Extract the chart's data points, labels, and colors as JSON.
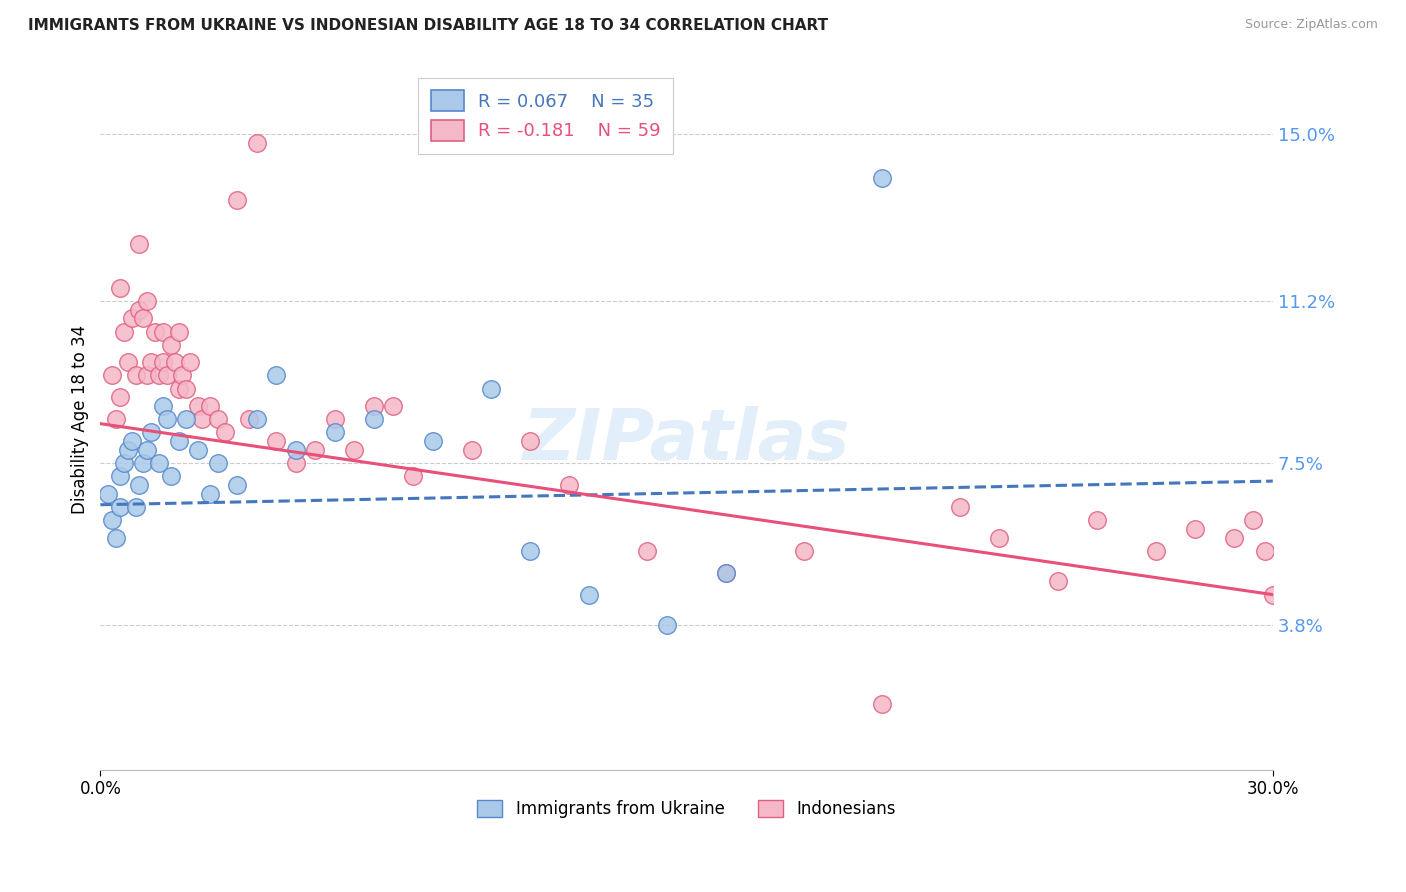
{
  "title": "IMMIGRANTS FROM UKRAINE VS INDONESIAN DISABILITY AGE 18 TO 34 CORRELATION CHART",
  "source": "Source: ZipAtlas.com",
  "ylabel": "Disability Age 18 to 34",
  "ytick_values": [
    3.8,
    7.5,
    11.2,
    15.0
  ],
  "xlim": [
    0.0,
    30.0
  ],
  "ylim": [
    0.5,
    16.5
  ],
  "ukraine_color": "#aac9e8",
  "ukraine_edge": "#5588cc",
  "indonesian_color": "#f5b8c8",
  "indonesian_edge": "#e06080",
  "trendline_ukraine_color": "#4477bb",
  "trendline_indonesian_color": "#e8507a",
  "ukraine_slope": 0.018,
  "ukraine_intercept": 6.55,
  "indonesian_slope": -0.13,
  "indonesian_intercept": 8.4,
  "ukraine_points_x": [
    0.2,
    0.3,
    0.4,
    0.5,
    0.5,
    0.6,
    0.7,
    0.8,
    0.9,
    1.0,
    1.1,
    1.2,
    1.3,
    1.5,
    1.6,
    1.7,
    1.8,
    2.0,
    2.2,
    2.5,
    2.8,
    3.0,
    3.5,
    4.0,
    4.5,
    5.0,
    6.0,
    7.0,
    8.5,
    10.0,
    11.0,
    12.5,
    14.5,
    16.0,
    20.0
  ],
  "ukraine_points_y": [
    6.8,
    6.2,
    5.8,
    6.5,
    7.2,
    7.5,
    7.8,
    8.0,
    6.5,
    7.0,
    7.5,
    7.8,
    8.2,
    7.5,
    8.8,
    8.5,
    7.2,
    8.0,
    8.5,
    7.8,
    6.8,
    7.5,
    7.0,
    8.5,
    9.5,
    7.8,
    8.2,
    8.5,
    8.0,
    9.2,
    5.5,
    4.5,
    3.8,
    5.0,
    14.0
  ],
  "indonesian_points_x": [
    0.3,
    0.4,
    0.5,
    0.5,
    0.6,
    0.7,
    0.8,
    0.9,
    1.0,
    1.0,
    1.1,
    1.2,
    1.2,
    1.3,
    1.4,
    1.5,
    1.6,
    1.6,
    1.7,
    1.8,
    1.9,
    2.0,
    2.0,
    2.1,
    2.2,
    2.3,
    2.5,
    2.6,
    2.8,
    3.0,
    3.2,
    3.5,
    3.8,
    4.0,
    4.5,
    5.0,
    5.5,
    6.0,
    6.5,
    7.0,
    7.5,
    8.0,
    9.5,
    11.0,
    12.0,
    14.0,
    16.0,
    18.0,
    20.0,
    22.0,
    23.0,
    24.5,
    25.5,
    27.0,
    28.0,
    29.0,
    29.5,
    29.8,
    30.0
  ],
  "indonesian_points_y": [
    9.5,
    8.5,
    9.0,
    11.5,
    10.5,
    9.8,
    10.8,
    9.5,
    11.0,
    12.5,
    10.8,
    11.2,
    9.5,
    9.8,
    10.5,
    9.5,
    9.8,
    10.5,
    9.5,
    10.2,
    9.8,
    9.2,
    10.5,
    9.5,
    9.2,
    9.8,
    8.8,
    8.5,
    8.8,
    8.5,
    8.2,
    13.5,
    8.5,
    14.8,
    8.0,
    7.5,
    7.8,
    8.5,
    7.8,
    8.8,
    8.8,
    7.2,
    7.8,
    8.0,
    7.0,
    5.5,
    5.0,
    5.5,
    2.0,
    6.5,
    5.8,
    4.8,
    6.2,
    5.5,
    6.0,
    5.8,
    6.2,
    5.5,
    4.5
  ]
}
